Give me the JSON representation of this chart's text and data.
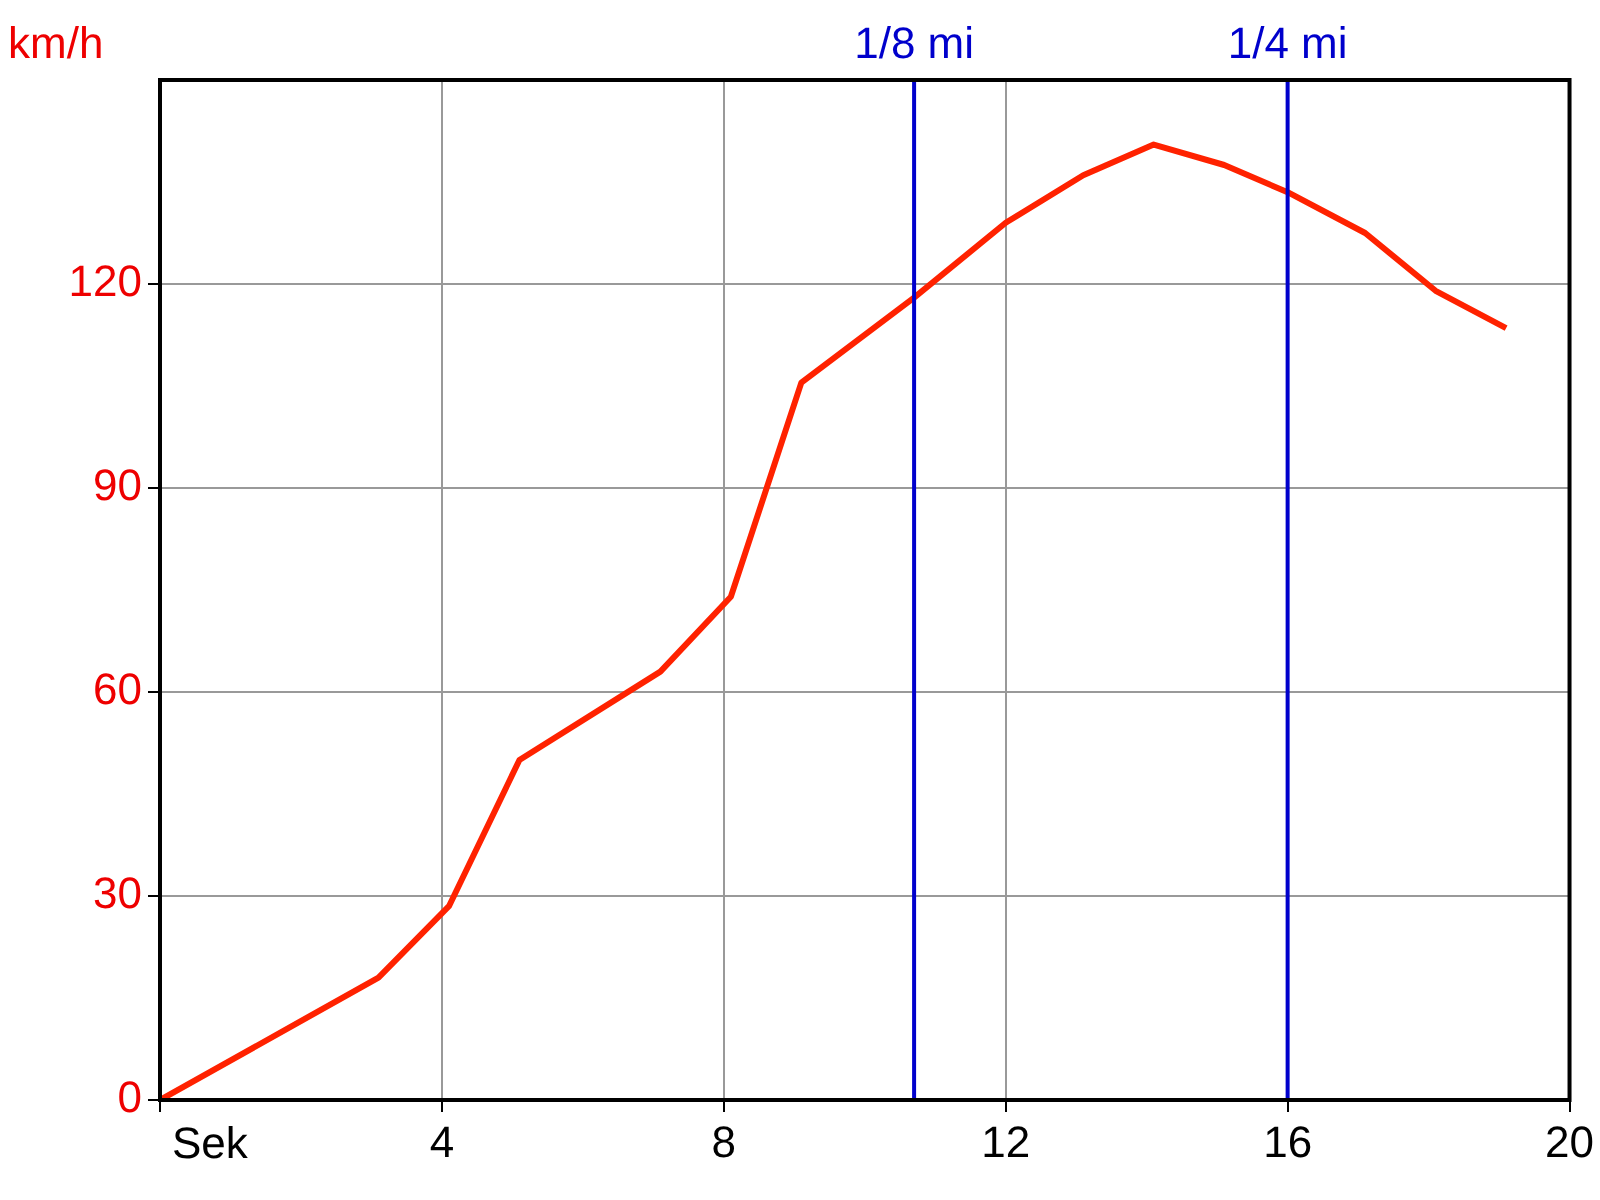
{
  "chart_data": {
    "type": "line",
    "ylabel": "km/h",
    "xlabel": "Sek",
    "x": [
      0,
      3.1,
      4.1,
      5.1,
      7.1,
      8.1,
      9.1,
      10.7,
      12,
      13.1,
      14.1,
      15.1,
      16,
      17.1,
      18.1,
      19.1
    ],
    "series": [
      {
        "color": "#ff2200",
        "values": [
          0,
          18,
          28.5,
          50,
          63,
          74,
          105.5,
          118,
          129,
          136,
          140.5,
          137.5,
          133.5,
          127.5,
          119,
          113.5
        ]
      }
    ],
    "xlim": [
      0,
      20
    ],
    "xticks": [
      {
        "value": 0,
        "label": null
      },
      4,
      8,
      12,
      16,
      20
    ],
    "ylim": [
      0,
      150
    ],
    "yticks": [
      0,
      30,
      60,
      90,
      120
    ],
    "grid": true,
    "legend": false,
    "marker": "none",
    "line_style": "solid",
    "ref_lines": [
      {
        "axis": "x",
        "value": 10.7,
        "label": "1/8 mi",
        "color": "#0000cc"
      },
      {
        "axis": "x",
        "value": 16,
        "label": "1/4 mi",
        "color": "#0000cc"
      }
    ]
  }
}
